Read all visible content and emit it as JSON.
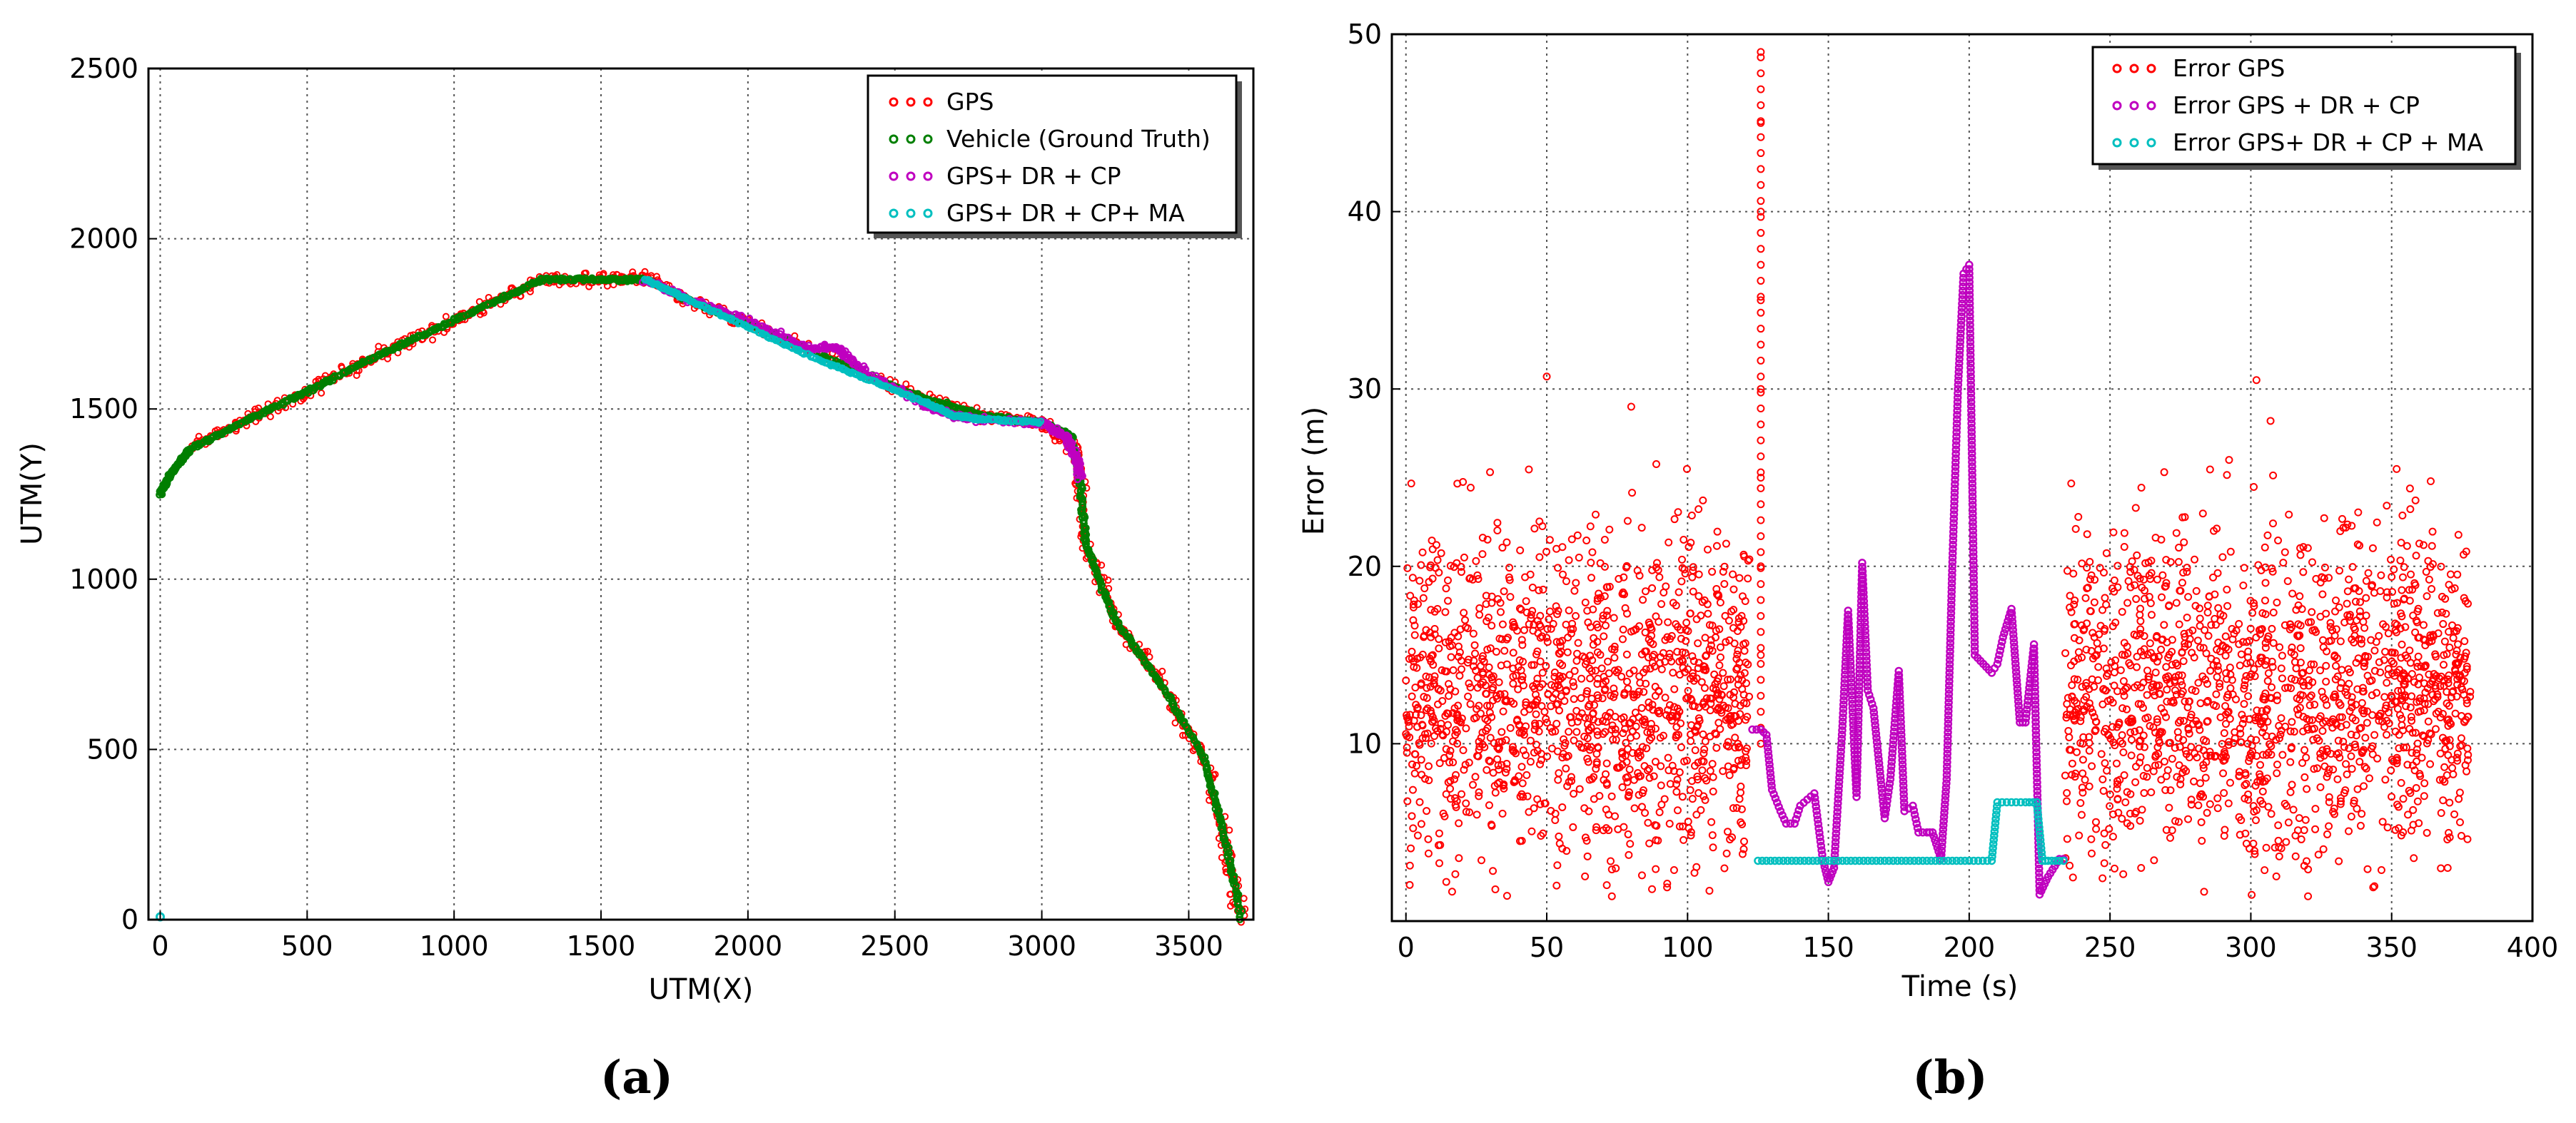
{
  "chart_data": [
    {
      "type": "scatter",
      "sublabel": "(a)",
      "xlabel": "UTM(X)",
      "ylabel": "UTM(Y)",
      "xlim": [
        -40,
        3720
      ],
      "ylim": [
        0,
        2500
      ],
      "xticks": [
        0,
        500,
        1000,
        1500,
        2000,
        2500,
        3000,
        3500
      ],
      "yticks": [
        0,
        500,
        1000,
        1500,
        2000,
        2500
      ],
      "grid": true,
      "legend_position": "top-right",
      "series": [
        {
          "name": "GPS",
          "color": "#ff0000",
          "x": [
            100,
            300,
            500,
            700,
            900,
            1100,
            1300,
            1500,
            1650,
            1800,
            2000,
            2300,
            2600,
            2800,
            3000,
            3120,
            3150,
            3250,
            3400,
            3550,
            3620,
            3680
          ],
          "y": [
            1390,
            1470,
            1550,
            1640,
            1720,
            1800,
            1880,
            1880,
            1890,
            1820,
            1750,
            1640,
            1530,
            1480,
            1460,
            1380,
            1100,
            880,
            700,
            480,
            250,
            0
          ]
        },
        {
          "name": "Vehicle (Ground Truth)",
          "color": "#007f00",
          "x": [
            0,
            30,
            70,
            100,
            300,
            500,
            700,
            900,
            1100,
            1300,
            1500,
            1650,
            1800,
            2000,
            2300,
            2600,
            2800,
            3000,
            3100,
            3130,
            3150,
            3250,
            3400,
            3550,
            3620,
            3680
          ],
          "y": [
            1250,
            1300,
            1350,
            1380,
            1470,
            1550,
            1640,
            1720,
            1800,
            1880,
            1880,
            1880,
            1820,
            1750,
            1640,
            1530,
            1480,
            1460,
            1420,
            1300,
            1100,
            880,
            700,
            480,
            250,
            0
          ]
        },
        {
          "name": "GPS+ DR + CP",
          "color": "#bf00bf",
          "x": [
            1650,
            1800,
            2000,
            2200,
            2300,
            2400,
            2600,
            2700,
            2800,
            3000,
            3080,
            3120,
            3130
          ],
          "y": [
            1880,
            1820,
            1760,
            1680,
            1680,
            1610,
            1510,
            1480,
            1470,
            1460,
            1420,
            1350,
            1300
          ]
        },
        {
          "name": "GPS+ DR + CP+ MA",
          "color": "#00bfbf",
          "x": [
            1650,
            1800,
            2000,
            2200,
            2400,
            2600,
            2700,
            2800,
            3000
          ],
          "y": [
            1880,
            1820,
            1740,
            1660,
            1590,
            1520,
            1480,
            1470,
            1460
          ]
        }
      ]
    },
    {
      "type": "scatter",
      "sublabel": "(b)",
      "xlabel": "Time (s)",
      "ylabel": "Error (m)",
      "xlim": [
        -5,
        400
      ],
      "ylim": [
        0,
        50
      ],
      "xticks": [
        0,
        50,
        100,
        150,
        200,
        250,
        300,
        350,
        400
      ],
      "yticks": [
        10,
        20,
        30,
        40,
        50
      ],
      "grid": true,
      "legend_position": "top-right",
      "series": [
        {
          "name": "Error GPS",
          "color": "#ff0000",
          "x_range_1": [
            0,
            122
          ],
          "x_range_2": [
            234,
            378
          ],
          "y_typical_range": [
            1,
            26
          ],
          "y_mean": 13,
          "outliers": [
            {
              "x": 126,
              "y": 49
            },
            {
              "x": 126,
              "y": 45
            },
            {
              "x": 126,
              "y": 40
            },
            {
              "x": 126,
              "y": 35
            },
            {
              "x": 126,
              "y": 30
            },
            {
              "x": 126,
              "y": 25
            },
            {
              "x": 126,
              "y": 20
            },
            {
              "x": 126,
              "y": 15
            },
            {
              "x": 50,
              "y": 30.7
            },
            {
              "x": 302,
              "y": 30.5
            },
            {
              "x": 80,
              "y": 29
            },
            {
              "x": 307,
              "y": 28.2
            }
          ]
        },
        {
          "name": "Error GPS + DR + CP",
          "color": "#bf00bf",
          "x": [
            123,
            126,
            128,
            130,
            133,
            135,
            138,
            140,
            145,
            148,
            150,
            152,
            155,
            157,
            160,
            162,
            164,
            166,
            170,
            172,
            175,
            177,
            180,
            182,
            185,
            187,
            190,
            192,
            194,
            196,
            198,
            200,
            202,
            205,
            208,
            210,
            212,
            215,
            218,
            220,
            223,
            225,
            228,
            232,
            235
          ],
          "y": [
            10.8,
            10.8,
            10.5,
            7.4,
            6.2,
            5.5,
            5.5,
            6.5,
            7.2,
            3.5,
            2.2,
            3,
            11,
            17.5,
            7,
            20.2,
            13,
            12,
            5.8,
            8,
            14.1,
            6.2,
            6.5,
            5,
            5,
            5,
            3.5,
            8,
            20,
            30,
            36.5,
            37,
            15,
            14.5,
            14,
            14.5,
            16,
            17.6,
            11.2,
            11.2,
            15.6,
            1.5,
            2.5,
            3.5,
            3.5
          ]
        },
        {
          "name": "Error GPS+ DR + CP + MA",
          "color": "#00bfbf",
          "x": [
            125,
            140,
            155,
            170,
            185,
            200,
            208,
            210,
            215,
            220,
            224,
            226,
            228,
            232,
            235
          ],
          "y": [
            3.4,
            3.4,
            3.4,
            3.4,
            3.4,
            3.4,
            3.4,
            6.7,
            6.7,
            6.7,
            6.7,
            3.4,
            3.4,
            3.4,
            3.4
          ]
        }
      ]
    }
  ]
}
